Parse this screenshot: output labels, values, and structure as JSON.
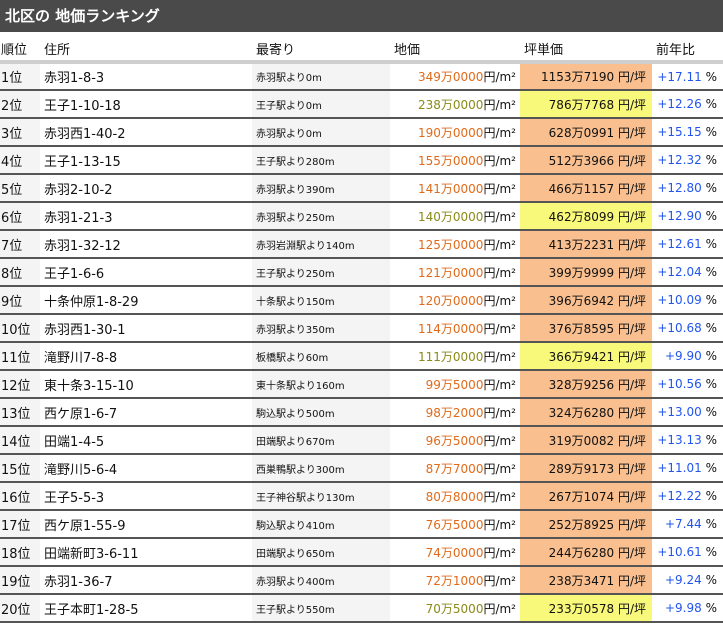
{
  "title": "北区の 地価ランキング",
  "headers": {
    "rank": "順位",
    "address": "住所",
    "station": "最寄り",
    "price": "地価",
    "tsubo": "坪単価",
    "change": "前年比"
  },
  "units": {
    "price": "円/m²",
    "tsubo": "円/坪",
    "percent": "%"
  },
  "colors": {
    "price_normal": "#e06a1a",
    "price_highlight": "#8a8a1a",
    "tsubo_normal": "#f9bf8f",
    "tsubo_highlight": "#f8f87a",
    "change": "#2255ee"
  },
  "rows": [
    {
      "rank": "1位",
      "address": "赤羽1-8-3",
      "station": "赤羽駅より0m",
      "price": "349万0000",
      "tsubo": "1153万7190",
      "change": "+17.11",
      "highlight": false
    },
    {
      "rank": "2位",
      "address": "王子1-10-18",
      "station": "王子駅より0m",
      "price": "238万0000",
      "tsubo": "786万7768",
      "change": "+12.26",
      "highlight": true
    },
    {
      "rank": "3位",
      "address": "赤羽西1-40-2",
      "station": "赤羽駅より0m",
      "price": "190万0000",
      "tsubo": "628万0991",
      "change": "+15.15",
      "highlight": false
    },
    {
      "rank": "4位",
      "address": "王子1-13-15",
      "station": "王子駅より280m",
      "price": "155万0000",
      "tsubo": "512万3966",
      "change": "+12.32",
      "highlight": false
    },
    {
      "rank": "5位",
      "address": "赤羽2-10-2",
      "station": "赤羽駅より390m",
      "price": "141万0000",
      "tsubo": "466万1157",
      "change": "+12.80",
      "highlight": false
    },
    {
      "rank": "6位",
      "address": "赤羽1-21-3",
      "station": "赤羽駅より250m",
      "price": "140万0000",
      "tsubo": "462万8099",
      "change": "+12.90",
      "highlight": true
    },
    {
      "rank": "7位",
      "address": "赤羽1-32-12",
      "station": "赤羽岩淵駅より140m",
      "price": "125万0000",
      "tsubo": "413万2231",
      "change": "+12.61",
      "highlight": false
    },
    {
      "rank": "8位",
      "address": "王子1-6-6",
      "station": "王子駅より250m",
      "price": "121万0000",
      "tsubo": "399万9999",
      "change": "+12.04",
      "highlight": false
    },
    {
      "rank": "9位",
      "address": "十条仲原1-8-29",
      "station": "十条駅より150m",
      "price": "120万0000",
      "tsubo": "396万6942",
      "change": "+10.09",
      "highlight": false
    },
    {
      "rank": "10位",
      "address": "赤羽西1-30-1",
      "station": "赤羽駅より350m",
      "price": "114万0000",
      "tsubo": "376万8595",
      "change": "+10.68",
      "highlight": false
    },
    {
      "rank": "11位",
      "address": "滝野川7-8-8",
      "station": "板橋駅より60m",
      "price": "111万0000",
      "tsubo": "366万9421",
      "change": "+9.90",
      "highlight": true
    },
    {
      "rank": "12位",
      "address": "東十条3-15-10",
      "station": "東十条駅より160m",
      "price": "99万5000",
      "tsubo": "328万9256",
      "change": "+10.56",
      "highlight": false
    },
    {
      "rank": "13位",
      "address": "西ケ原1-6-7",
      "station": "駒込駅より500m",
      "price": "98万2000",
      "tsubo": "324万6280",
      "change": "+13.00",
      "highlight": false
    },
    {
      "rank": "14位",
      "address": "田端1-4-5",
      "station": "田端駅より670m",
      "price": "96万5000",
      "tsubo": "319万0082",
      "change": "+13.13",
      "highlight": false
    },
    {
      "rank": "15位",
      "address": "滝野川5-6-4",
      "station": "西巣鴨駅より300m",
      "price": "87万7000",
      "tsubo": "289万9173",
      "change": "+11.01",
      "highlight": false
    },
    {
      "rank": "16位",
      "address": "王子5-5-3",
      "station": "王子神谷駅より130m",
      "price": "80万8000",
      "tsubo": "267万1074",
      "change": "+12.22",
      "highlight": false
    },
    {
      "rank": "17位",
      "address": "西ケ原1-55-9",
      "station": "駒込駅より410m",
      "price": "76万5000",
      "tsubo": "252万8925",
      "change": "+7.44",
      "highlight": false
    },
    {
      "rank": "18位",
      "address": "田端新町3-6-11",
      "station": "田端駅より650m",
      "price": "74万0000",
      "tsubo": "244万6280",
      "change": "+10.61",
      "highlight": false
    },
    {
      "rank": "19位",
      "address": "赤羽1-36-7",
      "station": "赤羽駅より400m",
      "price": "72万1000",
      "tsubo": "238万3471",
      "change": "+9.24",
      "highlight": false
    },
    {
      "rank": "20位",
      "address": "王子本町1-28-5",
      "station": "王子駅より550m",
      "price": "70万5000",
      "tsubo": "233万0578",
      "change": "+9.98",
      "highlight": true
    }
  ]
}
